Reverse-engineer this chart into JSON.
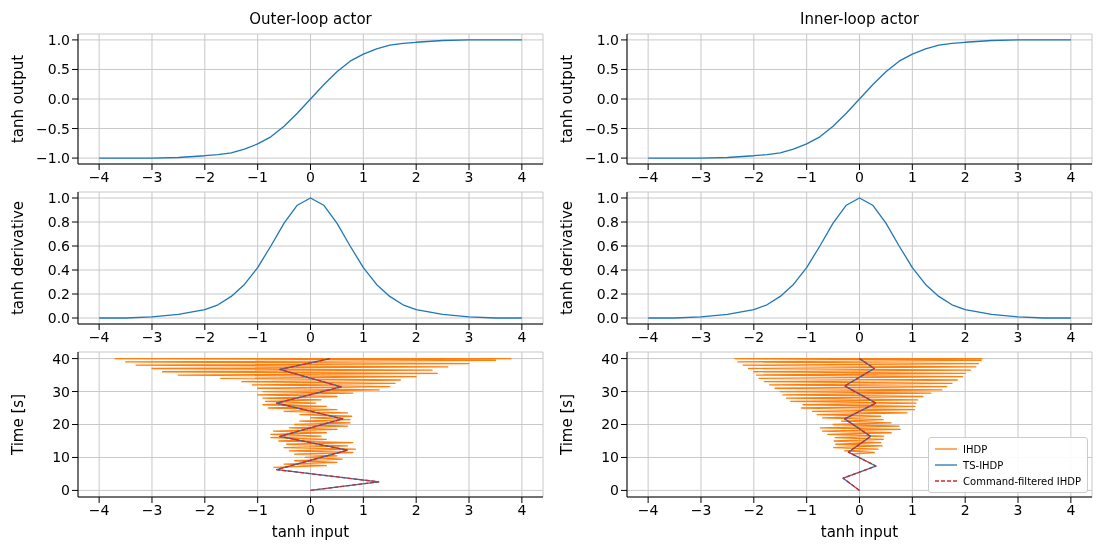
{
  "chart_data": [
    {
      "type": "line",
      "title": "Outer-loop actor",
      "ylabel": "tanh output",
      "grid": true,
      "x": [
        -4,
        -3.5,
        -3,
        -2.5,
        -2,
        -1.75,
        -1.5,
        -1.25,
        -1,
        -0.75,
        -0.5,
        -0.25,
        0,
        0.25,
        0.5,
        0.75,
        1,
        1.25,
        1.5,
        1.75,
        2,
        2.5,
        3,
        3.5,
        4
      ],
      "series": [
        {
          "color": "#1f77b4",
          "values": [
            -1.0,
            -1.0,
            -1.0,
            -0.99,
            -0.96,
            -0.94,
            -0.91,
            -0.85,
            -0.76,
            -0.64,
            -0.46,
            -0.24,
            0,
            0.24,
            0.46,
            0.64,
            0.76,
            0.85,
            0.91,
            0.94,
            0.96,
            0.99,
            1.0,
            1.0,
            1.0
          ]
        }
      ],
      "xlim": [
        -4.4,
        4.4
      ],
      "xticks": [
        {
          "value": -4,
          "label": "−4"
        },
        {
          "value": -3,
          "label": "−3"
        },
        {
          "value": -2,
          "label": "−2"
        },
        {
          "value": -1,
          "label": "−1"
        },
        0,
        1,
        2,
        3,
        4
      ],
      "ylim": [
        -1.1,
        1.1
      ],
      "yticks": [
        {
          "value": -1,
          "label": "−1.0"
        },
        {
          "value": -0.5,
          "label": "−0.5"
        },
        {
          "value": 0,
          "label": "0.0"
        },
        0.5,
        {
          "value": 1,
          "label": "1.0"
        }
      ]
    },
    {
      "type": "line",
      "title": "Inner-loop actor",
      "ylabel": "tanh output",
      "grid": true,
      "x": [
        -4,
        -3.5,
        -3,
        -2.5,
        -2,
        -1.75,
        -1.5,
        -1.25,
        -1,
        -0.75,
        -0.5,
        -0.25,
        0,
        0.25,
        0.5,
        0.75,
        1,
        1.25,
        1.5,
        1.75,
        2,
        2.5,
        3,
        3.5,
        4
      ],
      "series": [
        {
          "color": "#1f77b4",
          "values": [
            -1.0,
            -1.0,
            -1.0,
            -0.99,
            -0.96,
            -0.94,
            -0.91,
            -0.85,
            -0.76,
            -0.64,
            -0.46,
            -0.24,
            0,
            0.24,
            0.46,
            0.64,
            0.76,
            0.85,
            0.91,
            0.94,
            0.96,
            0.99,
            1.0,
            1.0,
            1.0
          ]
        }
      ],
      "xlim": [
        -4.4,
        4.4
      ],
      "xticks": [
        {
          "value": -4,
          "label": "−4"
        },
        {
          "value": -3,
          "label": "−3"
        },
        {
          "value": -2,
          "label": "−2"
        },
        {
          "value": -1,
          "label": "−1"
        },
        0,
        1,
        2,
        3,
        4
      ],
      "ylim": [
        -1.1,
        1.1
      ],
      "yticks": [
        {
          "value": -1,
          "label": "−1.0"
        },
        {
          "value": -0.5,
          "label": "−0.5"
        },
        {
          "value": 0,
          "label": "0.0"
        },
        0.5,
        {
          "value": 1,
          "label": "1.0"
        }
      ]
    },
    {
      "type": "line",
      "ylabel": "tanh derivative",
      "grid": true,
      "x": [
        -4,
        -3.5,
        -3,
        -2.5,
        -2,
        -1.75,
        -1.5,
        -1.25,
        -1,
        -0.75,
        -0.5,
        -0.25,
        0,
        0.25,
        0.5,
        0.75,
        1,
        1.25,
        1.5,
        1.75,
        2,
        2.5,
        3,
        3.5,
        4
      ],
      "series": [
        {
          "color": "#1f77b4",
          "values": [
            0.0,
            0.0,
            0.01,
            0.03,
            0.07,
            0.11,
            0.18,
            0.28,
            0.42,
            0.6,
            0.79,
            0.94,
            1.0,
            0.94,
            0.79,
            0.6,
            0.42,
            0.28,
            0.18,
            0.11,
            0.07,
            0.03,
            0.01,
            0.0,
            0.0
          ]
        }
      ],
      "xlim": [
        -4.4,
        4.4
      ],
      "xticks": [
        {
          "value": -4,
          "label": "−4"
        },
        {
          "value": -3,
          "label": "−3"
        },
        {
          "value": -2,
          "label": "−2"
        },
        {
          "value": -1,
          "label": "−1"
        },
        0,
        1,
        2,
        3,
        4
      ],
      "ylim": [
        -0.05,
        1.05
      ],
      "yticks": [
        {
          "value": 0,
          "label": "0.0"
        },
        0.2,
        0.4,
        0.6,
        0.8,
        {
          "value": 1,
          "label": "1.0"
        }
      ]
    },
    {
      "type": "line",
      "ylabel": "tanh derivative",
      "grid": true,
      "x": [
        -4,
        -3.5,
        -3,
        -2.5,
        -2,
        -1.75,
        -1.5,
        -1.25,
        -1,
        -0.75,
        -0.5,
        -0.25,
        0,
        0.25,
        0.5,
        0.75,
        1,
        1.25,
        1.5,
        1.75,
        2,
        2.5,
        3,
        3.5,
        4
      ],
      "series": [
        {
          "color": "#1f77b4",
          "values": [
            0.0,
            0.0,
            0.01,
            0.03,
            0.07,
            0.11,
            0.18,
            0.28,
            0.42,
            0.6,
            0.79,
            0.94,
            1.0,
            0.94,
            0.79,
            0.6,
            0.42,
            0.28,
            0.18,
            0.11,
            0.07,
            0.03,
            0.01,
            0.0,
            0.0
          ]
        }
      ],
      "xlim": [
        -4.4,
        4.4
      ],
      "xticks": [
        {
          "value": -4,
          "label": "−4"
        },
        {
          "value": -3,
          "label": "−3"
        },
        {
          "value": -2,
          "label": "−2"
        },
        {
          "value": -1,
          "label": "−1"
        },
        0,
        1,
        2,
        3,
        4
      ],
      "ylim": [
        -0.05,
        1.05
      ],
      "yticks": [
        {
          "value": 0,
          "label": "0.0"
        },
        0.2,
        0.4,
        0.6,
        0.8,
        {
          "value": 1,
          "label": "1.0"
        }
      ]
    },
    {
      "type": "line",
      "xlabel": "tanh input",
      "ylabel": "Time [s]",
      "grid": true,
      "series": [
        {
          "color": "#ff7f0e",
          "x": [
            -0.7,
            0.3,
            -0.5,
            0.5,
            -0.3,
            0.6,
            -0.1,
            0.5,
            -0.3,
            0.8,
            -0.4,
            0.85,
            -0.5,
            0.7,
            -0.45,
            0.8,
            -0.6,
            0.3,
            -0.75,
            0.2,
            -0.75,
            0.3,
            -0.7,
            0.5,
            -0.4,
            0.7,
            -0.3,
            0.75,
            -0.2,
            0.75,
            0.0,
            0.78,
            -0.2,
            0.7,
            -0.5,
            0.5,
            -0.8,
            0.3,
            -0.9,
            0.1,
            -0.85,
            0.2,
            -0.9,
            0.5,
            -1.0,
            0.8,
            -0.9,
            1.3,
            -1.0,
            1.5,
            -1.1,
            1.6,
            -1.3,
            1.7,
            -1.7,
            2.0,
            -2.5,
            2.4,
            -2.8,
            2.3,
            -3.0,
            2.6,
            -3.3,
            3.0,
            -3.5,
            3.5,
            -3.7,
            3.8
          ],
          "values": [
            7,
            7.5,
            8,
            8.5,
            9,
            9.5,
            10,
            10.5,
            11,
            11.5,
            12,
            12.5,
            13,
            13.5,
            14,
            14.5,
            15,
            15.5,
            16,
            16.5,
            17,
            17.5,
            18,
            18.5,
            19,
            19.5,
            20,
            20.5,
            21,
            21.5,
            22,
            22.5,
            23,
            23.5,
            24,
            24.5,
            25,
            25.5,
            26,
            26.5,
            27,
            27.5,
            28,
            28.5,
            29,
            29.5,
            30,
            30.5,
            31,
            31.5,
            32,
            32.5,
            33,
            33.5,
            34,
            34.5,
            35,
            35.5,
            36,
            36.5,
            37,
            37.5,
            38,
            38.5,
            39,
            39.5,
            40,
            40
          ]
        },
        {
          "color": "#1f77b4",
          "x": [
            0,
            1.29,
            -0.64,
            0.7,
            -0.58,
            0.61,
            -0.64,
            0.58,
            -0.58,
            0.37
          ],
          "values": [
            0,
            2.6,
            6.3,
            12.2,
            16.4,
            21.7,
            26.5,
            31.4,
            36.7,
            40
          ]
        },
        {
          "color": "#d62728",
          "line_style": "dashed",
          "x": [
            0,
            1.29,
            -0.64,
            0.7,
            -0.58,
            0.61,
            -0.64,
            0.58,
            -0.58,
            0.37
          ],
          "values": [
            0,
            2.6,
            6.3,
            12.2,
            16.4,
            21.7,
            26.5,
            31.4,
            36.7,
            40
          ]
        }
      ],
      "xlim": [
        -4.4,
        4.4
      ],
      "xticks": [
        {
          "value": -4,
          "label": "−4"
        },
        {
          "value": -3,
          "label": "−3"
        },
        {
          "value": -2,
          "label": "−2"
        },
        {
          "value": -1,
          "label": "−1"
        },
        0,
        1,
        2,
        3,
        4
      ],
      "ylim": [
        -2,
        42
      ],
      "yticks": [
        0,
        10,
        20,
        30,
        40
      ]
    },
    {
      "type": "line",
      "xlabel": "tanh input",
      "ylabel": "Time [s]",
      "grid": true,
      "legend": "bottom right",
      "series": [
        {
          "name": "IHDP",
          "color": "#ff7f0e",
          "x": [
            -0.15,
            0.28,
            -0.28,
            0.35,
            -0.49,
            0.43,
            -0.45,
            0.4,
            -0.48,
            0.45,
            -0.46,
            0.46,
            -0.6,
            0.6,
            -0.7,
            0.77,
            -0.74,
            0.75,
            -0.5,
            0.6,
            -0.34,
            0.45,
            -0.7,
            0.4,
            -0.8,
            0.9,
            -0.89,
            1.04,
            -1.1,
            1.05,
            -1.07,
            1.07,
            -1.3,
            1.1,
            -1.38,
            1.2,
            -1.45,
            1.35,
            -1.5,
            1.56,
            -1.6,
            1.65,
            -1.7,
            1.75,
            -1.8,
            1.85,
            -1.9,
            1.95,
            -1.95,
            2.0,
            -2.0,
            2.1,
            -2.1,
            2.2,
            -2.2,
            2.25,
            -2.3,
            2.3,
            -2.36,
            2.33
          ],
          "values": [
            11,
            11.5,
            12,
            12.5,
            13,
            13.5,
            14,
            14.5,
            15,
            15.5,
            16,
            16.5,
            17,
            17.5,
            18,
            18.5,
            19,
            19.5,
            20,
            20.5,
            21,
            21.5,
            22,
            22.5,
            23,
            23.5,
            24,
            24.5,
            25,
            25.5,
            26,
            26.5,
            27,
            27.5,
            28,
            28.5,
            29,
            29.5,
            30,
            30.5,
            31,
            31.5,
            32,
            32.5,
            33,
            33.5,
            34,
            34.5,
            35,
            35.5,
            36,
            36.5,
            37,
            37.5,
            38,
            38.5,
            39,
            39.5,
            40,
            40
          ]
        },
        {
          "name": "TS-IHDP",
          "color": "#1f77b4",
          "x": [
            0,
            -0.31,
            0.31,
            -0.21,
            0.21,
            -0.28,
            0.31,
            -0.28,
            0.28,
            0
          ],
          "values": [
            0,
            3.7,
            7.4,
            11.6,
            16.4,
            21.7,
            26.5,
            31.7,
            37,
            40
          ]
        },
        {
          "name": "Command-filtered IHDP",
          "color": "#d62728",
          "line_style": "dashed",
          "x": [
            0,
            -0.31,
            0.31,
            -0.21,
            0.21,
            -0.28,
            0.31,
            -0.28,
            0.28,
            0
          ],
          "values": [
            0,
            3.7,
            7.4,
            11.6,
            16.4,
            21.7,
            26.5,
            31.7,
            37,
            40
          ]
        }
      ],
      "xlim": [
        -4.4,
        4.4
      ],
      "xticks": [
        {
          "value": -4,
          "label": "−4"
        },
        {
          "value": -3,
          "label": "−3"
        },
        {
          "value": -2,
          "label": "−2"
        },
        {
          "value": -1,
          "label": "−1"
        },
        0,
        1,
        2,
        3,
        4
      ],
      "ylim": [
        -2,
        42
      ],
      "yticks": [
        0,
        10,
        20,
        30,
        40
      ]
    }
  ]
}
